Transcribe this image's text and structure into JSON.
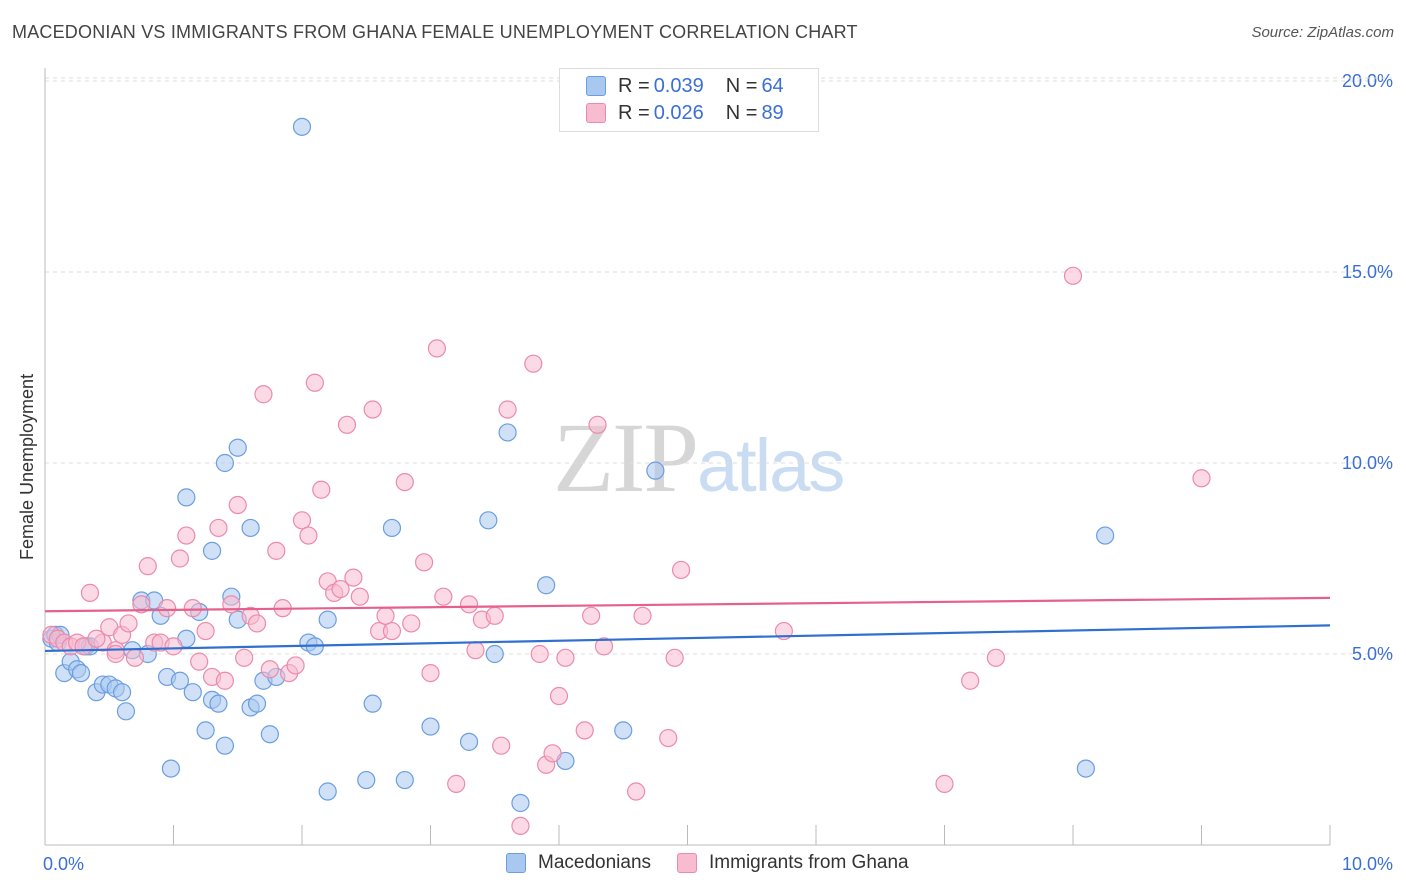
{
  "title": "MACEDONIAN VS IMMIGRANTS FROM GHANA FEMALE UNEMPLOYMENT CORRELATION CHART",
  "source": "Source: ZipAtlas.com",
  "watermark": {
    "zip": "ZIP",
    "atlas": "atlas"
  },
  "colors": {
    "blue_fill": "#a9c8f0",
    "blue_stroke": "#6b9ee0",
    "blue_line": "#2f6fd0",
    "pink_fill": "#f7bcd0",
    "pink_stroke": "#ec8aaa",
    "pink_line": "#e5618b",
    "axis_text_blue": "#3b6fd4",
    "grid": "#dddddd"
  },
  "legend_top": {
    "rows": [
      {
        "r_label": "R = ",
        "r_value": "0.039",
        "n_label": "N = ",
        "n_value": "64"
      },
      {
        "r_label": "R = ",
        "r_value": "0.026",
        "n_label": "N = ",
        "n_value": "89"
      }
    ]
  },
  "legend_bottom": [
    "Macedonians",
    "Immigrants from Ghana"
  ],
  "chart_data": {
    "type": "scatter",
    "title": "MACEDONIAN VS IMMIGRANTS FROM GHANA FEMALE UNEMPLOYMENT CORRELATION CHART",
    "xlabel": "",
    "ylabel": "Female Unemployment",
    "xlim": [
      0,
      10
    ],
    "ylim": [
      0,
      20.6
    ],
    "x_tick_labels": [
      "0.0%",
      "10.0%"
    ],
    "y_ticks": [
      5,
      10,
      15,
      20
    ],
    "y_tick_labels": [
      "5.0%",
      "10.0%",
      "15.0%",
      "20.0%"
    ],
    "grid": "horizontal dashed",
    "legend_placement": "top-center",
    "series": [
      {
        "name": "Macedonians",
        "r": 0.039,
        "n": 64,
        "trend": {
          "x": [
            0,
            10
          ],
          "y": [
            5.08,
            5.75
          ]
        },
        "points": [
          [
            0.05,
            5.4
          ],
          [
            0.08,
            5.5
          ],
          [
            0.1,
            5.3
          ],
          [
            0.15,
            4.5
          ],
          [
            0.2,
            4.8
          ],
          [
            0.25,
            4.6
          ],
          [
            0.28,
            4.5
          ],
          [
            0.32,
            5.2
          ],
          [
            0.4,
            4.0
          ],
          [
            0.45,
            4.2
          ],
          [
            0.5,
            4.2
          ],
          [
            0.55,
            4.1
          ],
          [
            0.6,
            4.0
          ],
          [
            0.63,
            3.5
          ],
          [
            0.68,
            5.1
          ],
          [
            0.75,
            6.4
          ],
          [
            0.8,
            5.0
          ],
          [
            0.85,
            6.4
          ],
          [
            0.9,
            6.0
          ],
          [
            0.95,
            4.4
          ],
          [
            0.98,
            2.0
          ],
          [
            1.05,
            4.3
          ],
          [
            1.1,
            5.4
          ],
          [
            1.15,
            4.0
          ],
          [
            1.2,
            6.1
          ],
          [
            1.25,
            3.0
          ],
          [
            1.3,
            3.8
          ],
          [
            1.35,
            3.7
          ],
          [
            1.4,
            2.6
          ],
          [
            1.45,
            6.5
          ],
          [
            1.5,
            5.9
          ],
          [
            1.6,
            3.6
          ],
          [
            1.65,
            3.7
          ],
          [
            1.7,
            4.3
          ],
          [
            1.75,
            2.9
          ],
          [
            1.8,
            4.4
          ],
          [
            1.1,
            9.1
          ],
          [
            1.3,
            7.7
          ],
          [
            1.4,
            10.0
          ],
          [
            1.5,
            10.4
          ],
          [
            1.6,
            8.3
          ],
          [
            2.0,
            18.8
          ],
          [
            2.05,
            5.3
          ],
          [
            2.1,
            5.2
          ],
          [
            2.2,
            5.9
          ],
          [
            2.2,
            1.4
          ],
          [
            2.5,
            1.7
          ],
          [
            2.55,
            3.7
          ],
          [
            2.7,
            8.3
          ],
          [
            2.8,
            1.7
          ],
          [
            3.0,
            3.1
          ],
          [
            3.3,
            2.7
          ],
          [
            3.45,
            8.5
          ],
          [
            3.5,
            5.0
          ],
          [
            3.6,
            10.8
          ],
          [
            3.7,
            1.1
          ],
          [
            3.9,
            6.8
          ],
          [
            4.05,
            2.2
          ],
          [
            4.5,
            3.0
          ],
          [
            4.75,
            9.8
          ],
          [
            8.1,
            2.0
          ],
          [
            8.25,
            8.1
          ],
          [
            0.12,
            5.5
          ],
          [
            0.35,
            5.2
          ]
        ]
      },
      {
        "name": "Immigrants from Ghana",
        "r": 0.026,
        "n": 89,
        "trend": {
          "x": [
            0,
            10
          ],
          "y": [
            6.12,
            6.47
          ]
        },
        "points": [
          [
            0.05,
            5.5
          ],
          [
            0.1,
            5.4
          ],
          [
            0.15,
            5.3
          ],
          [
            0.2,
            5.2
          ],
          [
            0.25,
            5.3
          ],
          [
            0.3,
            5.2
          ],
          [
            0.35,
            6.6
          ],
          [
            0.45,
            5.3
          ],
          [
            0.5,
            5.7
          ],
          [
            0.55,
            5.1
          ],
          [
            0.6,
            5.5
          ],
          [
            0.65,
            5.8
          ],
          [
            0.7,
            4.9
          ],
          [
            0.75,
            6.3
          ],
          [
            0.8,
            7.3
          ],
          [
            0.85,
            5.3
          ],
          [
            0.9,
            5.3
          ],
          [
            0.95,
            6.2
          ],
          [
            1.0,
            5.2
          ],
          [
            1.05,
            7.5
          ],
          [
            1.1,
            8.1
          ],
          [
            1.15,
            6.2
          ],
          [
            1.2,
            4.8
          ],
          [
            1.25,
            5.6
          ],
          [
            1.3,
            4.4
          ],
          [
            1.35,
            8.3
          ],
          [
            1.4,
            4.3
          ],
          [
            1.45,
            6.3
          ],
          [
            1.5,
            8.9
          ],
          [
            1.55,
            4.9
          ],
          [
            1.6,
            6.0
          ],
          [
            1.65,
            5.8
          ],
          [
            1.7,
            11.8
          ],
          [
            1.75,
            4.6
          ],
          [
            1.8,
            7.7
          ],
          [
            1.85,
            6.2
          ],
          [
            1.9,
            4.5
          ],
          [
            1.95,
            4.7
          ],
          [
            2.0,
            8.5
          ],
          [
            2.05,
            8.1
          ],
          [
            2.1,
            12.1
          ],
          [
            2.15,
            9.3
          ],
          [
            2.2,
            6.9
          ],
          [
            2.25,
            6.6
          ],
          [
            2.3,
            6.7
          ],
          [
            2.35,
            11.0
          ],
          [
            2.4,
            7.0
          ],
          [
            2.45,
            6.5
          ],
          [
            2.55,
            11.4
          ],
          [
            2.6,
            5.6
          ],
          [
            2.65,
            6.0
          ],
          [
            2.7,
            5.6
          ],
          [
            2.8,
            9.5
          ],
          [
            2.85,
            5.8
          ],
          [
            2.95,
            7.4
          ],
          [
            3.0,
            4.5
          ],
          [
            3.05,
            13.0
          ],
          [
            3.1,
            6.5
          ],
          [
            3.2,
            1.6
          ],
          [
            3.3,
            6.3
          ],
          [
            3.35,
            5.1
          ],
          [
            3.4,
            5.9
          ],
          [
            3.5,
            6.0
          ],
          [
            3.55,
            2.6
          ],
          [
            3.6,
            11.4
          ],
          [
            3.7,
            0.5
          ],
          [
            3.8,
            12.6
          ],
          [
            3.85,
            5.0
          ],
          [
            3.9,
            2.1
          ],
          [
            3.95,
            2.4
          ],
          [
            4.0,
            3.9
          ],
          [
            4.05,
            4.9
          ],
          [
            4.2,
            3.0
          ],
          [
            4.25,
            6.0
          ],
          [
            4.3,
            11.0
          ],
          [
            4.35,
            5.2
          ],
          [
            4.6,
            1.4
          ],
          [
            4.65,
            6.0
          ],
          [
            4.85,
            2.8
          ],
          [
            4.9,
            4.9
          ],
          [
            4.95,
            7.2
          ],
          [
            5.75,
            5.6
          ],
          [
            7.0,
            1.6
          ],
          [
            7.2,
            4.3
          ],
          [
            7.4,
            4.9
          ],
          [
            8.0,
            14.9
          ],
          [
            9.0,
            9.6
          ],
          [
            0.4,
            5.4
          ],
          [
            0.55,
            5.0
          ]
        ]
      }
    ]
  }
}
